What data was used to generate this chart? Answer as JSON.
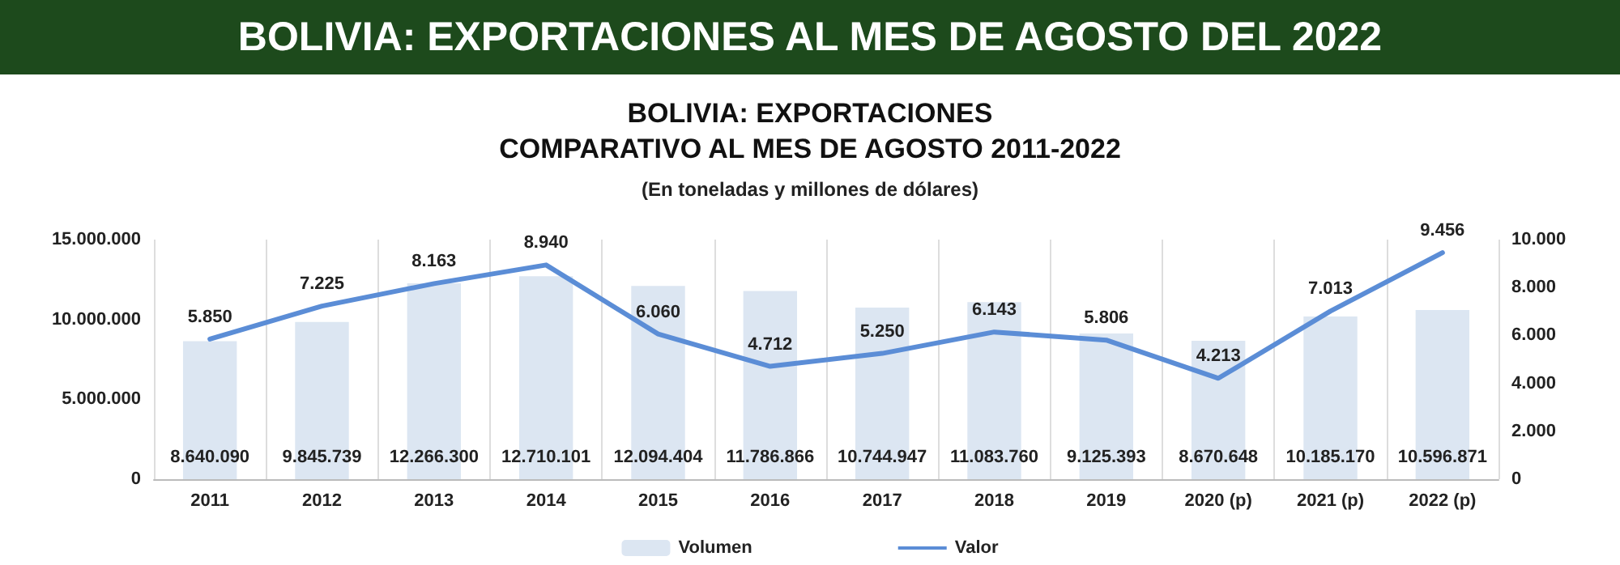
{
  "chart_data": {
    "type": "bar",
    "title": "BOLIVIA: EXPORTACIONES AL MES DE AGOSTO DEL 2022",
    "subtitle": "BOLIVIA: EXPORTACIONES\nCOMPARATIVO AL MES DE AGOSTO 2011-2022",
    "annotations": [
      "(En toneladas y millones de dólares)"
    ],
    "categories": [
      "2011",
      "2012",
      "2013",
      "2014",
      "2015",
      "2016",
      "2017",
      "2018",
      "2019",
      "2020 (p)",
      "2021 (p)",
      "2022 (p)"
    ],
    "series": [
      {
        "name": "Volumen",
        "color": "#dce6f2",
        "values": [
          8640090,
          9845739,
          12266300,
          12710101,
          12094404,
          11786866,
          10744947,
          11083760,
          9125393,
          8670648,
          10185170,
          10596871
        ],
        "value_labels": [
          "8.640.090",
          "9.845.739",
          "12.266.300",
          "12.710.101",
          "12.094.404",
          "11.786.866",
          "10.744.947",
          "11.083.760",
          "9.125.393",
          "8.670.648",
          "10.185.170",
          "10.596.871"
        ]
      },
      {
        "name": "Valor",
        "type": "line",
        "axis": "y2",
        "color": "#5b8dd6",
        "marker": "none",
        "values": [
          5850,
          7225,
          8163,
          8940,
          6060,
          4712,
          5250,
          6143,
          5806,
          4213,
          7013,
          9456
        ],
        "value_labels": [
          "5.850",
          "7.225",
          "8.163",
          "8.940",
          "6.060",
          "4.712",
          "5.250",
          "6.143",
          "5.806",
          "4.213",
          "7.013",
          "9.456"
        ]
      }
    ],
    "ylim": [
      0,
      15000000
    ],
    "yticks": [
      0,
      {
        "value": 5000000,
        "label": "5.000.000"
      },
      {
        "value": 10000000,
        "label": "10.000.000"
      },
      {
        "value": 15000000,
        "label": "15.000.000"
      }
    ],
    "y2lim": [
      0,
      10000
    ],
    "y2ticks": [
      0,
      {
        "value": 2000,
        "label": "2.000"
      },
      {
        "value": 4000,
        "label": "4.000"
      },
      {
        "value": 6000,
        "label": "6.000"
      },
      {
        "value": 8000,
        "label": "8.000"
      },
      {
        "value": 10000,
        "label": "10.000"
      }
    ],
    "grid": "x",
    "legend": "bottom"
  }
}
